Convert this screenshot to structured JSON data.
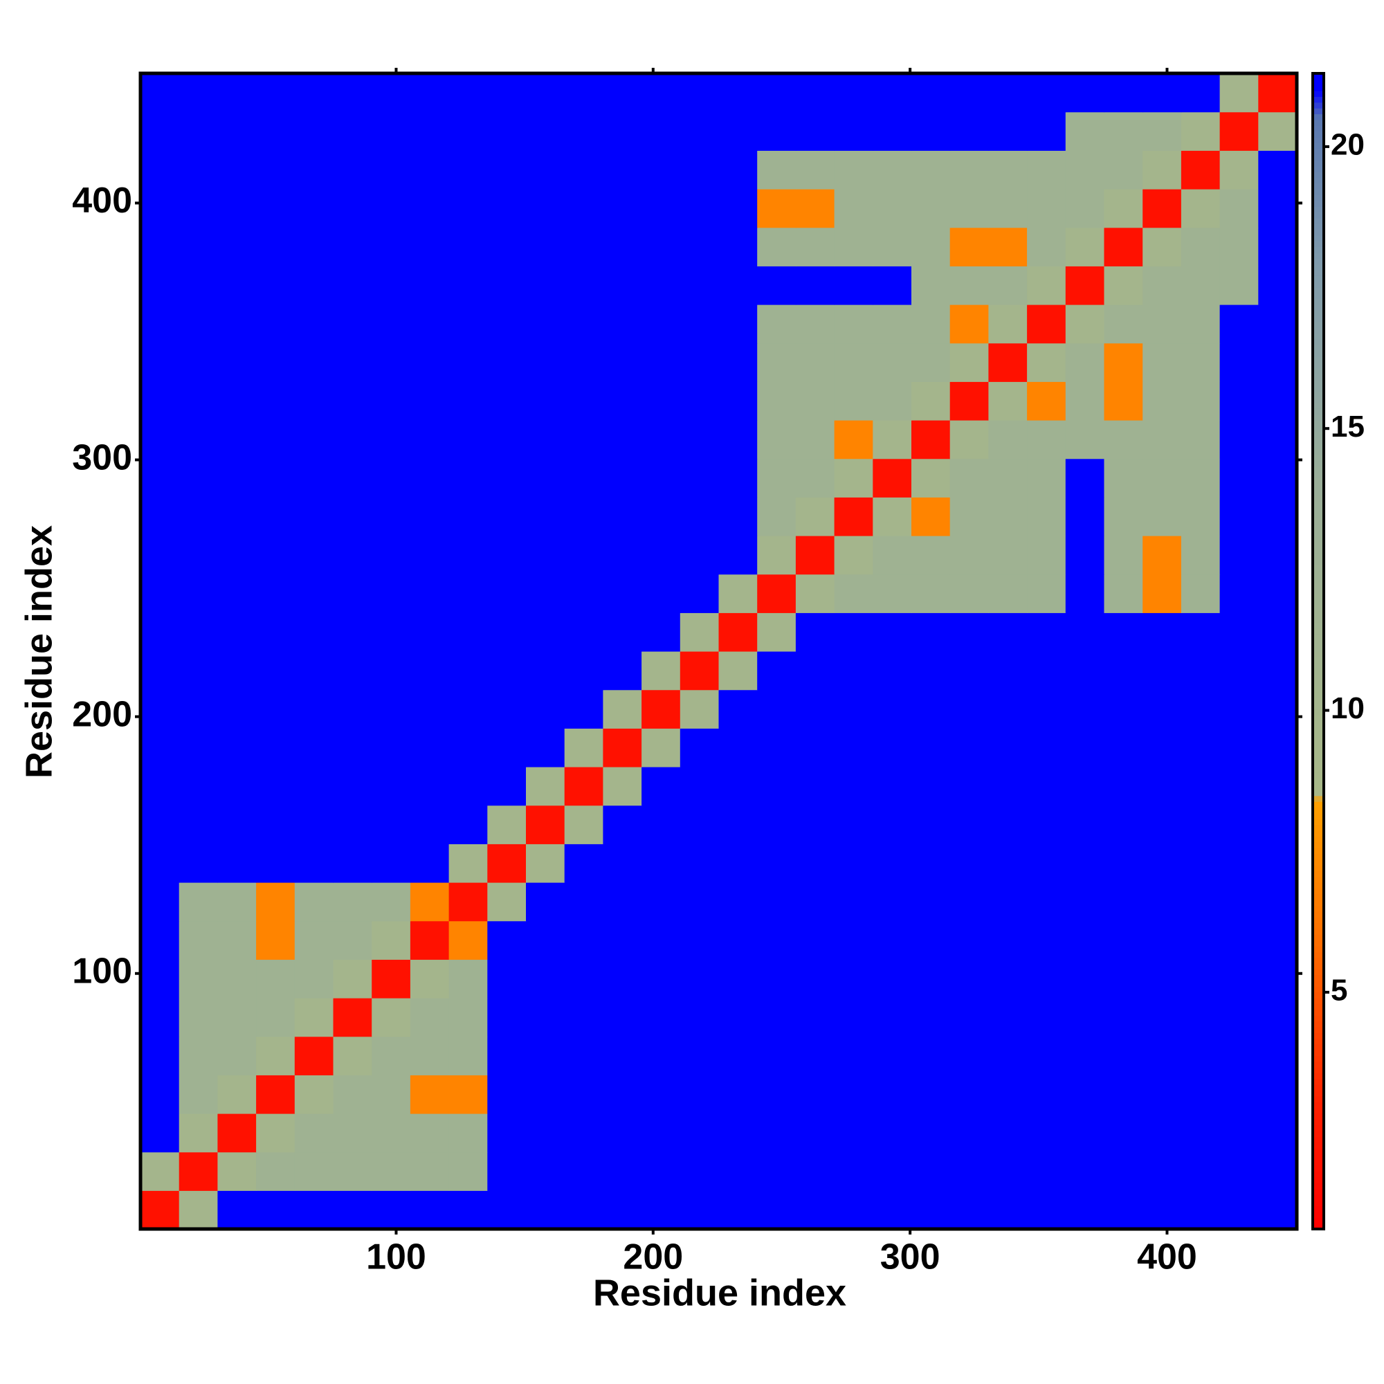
{
  "chart_data": {
    "type": "heatmap",
    "xlabel": "Residue index",
    "ylabel": "Residue index",
    "bins": [
      0.5,
      15.5,
      30.5,
      45.5,
      60.5,
      75.5,
      90.5,
      105.5,
      120.5,
      135.5,
      150.5,
      165.5,
      180.5,
      195.5,
      210.5,
      225.5,
      240.5,
      255.5,
      270.5,
      285.5,
      300.5,
      315.5,
      330.5,
      345.5,
      360.5,
      375.5,
      390.5,
      405.5,
      420.5,
      435.5,
      450.5
    ],
    "xlim": [
      0.5,
      450.5
    ],
    "ylim": [
      0.5,
      450.5
    ],
    "xticks": [
      100,
      200,
      300,
      400
    ],
    "yticks": [
      100,
      200,
      300,
      400
    ],
    "zlim": [
      0.8,
      21.3
    ],
    "zticks": [
      5,
      10,
      15,
      20
    ],
    "colorscale": [
      [
        0.8,
        "#ff0000"
      ],
      [
        3,
        "#ff2000"
      ],
      [
        6,
        "#ff7000"
      ],
      [
        8.4,
        "#ffa000"
      ],
      [
        8.5,
        "#a8b888"
      ],
      [
        14,
        "#9aae98"
      ],
      [
        18,
        "#7f9aac"
      ],
      [
        20.5,
        "#5a78b0"
      ],
      [
        21,
        "#0000ff"
      ],
      [
        21.3,
        "#0000ff"
      ]
    ],
    "z": [
      [
        2,
        10,
        21,
        21,
        21,
        21,
        21,
        21,
        21,
        21,
        21,
        21,
        21,
        21,
        21,
        21,
        21,
        21,
        21,
        21,
        21,
        21,
        21,
        21,
        21,
        21,
        21,
        21,
        21,
        21
      ],
      [
        10,
        2,
        10,
        12,
        12,
        12,
        12,
        12,
        12,
        21,
        21,
        21,
        21,
        21,
        21,
        21,
        21,
        21,
        21,
        21,
        21,
        21,
        21,
        21,
        21,
        21,
        21,
        21,
        21,
        21
      ],
      [
        21,
        10,
        2,
        10,
        12,
        12,
        12,
        12,
        12,
        21,
        21,
        21,
        21,
        21,
        21,
        21,
        21,
        21,
        21,
        21,
        21,
        21,
        21,
        21,
        21,
        21,
        21,
        21,
        21,
        21
      ],
      [
        21,
        12,
        10,
        2,
        10,
        12,
        12,
        7,
        7,
        21,
        21,
        21,
        21,
        21,
        21,
        21,
        21,
        21,
        21,
        21,
        21,
        21,
        21,
        21,
        21,
        21,
        21,
        21,
        21,
        21
      ],
      [
        21,
        12,
        12,
        10,
        2,
        10,
        12,
        12,
        12,
        21,
        21,
        21,
        21,
        21,
        21,
        21,
        21,
        21,
        21,
        21,
        21,
        21,
        21,
        21,
        21,
        21,
        21,
        21,
        21,
        21
      ],
      [
        21,
        12,
        12,
        12,
        10,
        2,
        10,
        12,
        12,
        21,
        21,
        21,
        21,
        21,
        21,
        21,
        21,
        21,
        21,
        21,
        21,
        21,
        21,
        21,
        21,
        21,
        21,
        21,
        21,
        21
      ],
      [
        21,
        12,
        12,
        12,
        12,
        10,
        2,
        10,
        12,
        21,
        21,
        21,
        21,
        21,
        21,
        21,
        21,
        21,
        21,
        21,
        21,
        21,
        21,
        21,
        21,
        21,
        21,
        21,
        21,
        21
      ],
      [
        21,
        12,
        12,
        7,
        12,
        12,
        10,
        2,
        7,
        21,
        21,
        21,
        21,
        21,
        21,
        21,
        21,
        21,
        21,
        21,
        21,
        21,
        21,
        21,
        21,
        21,
        21,
        21,
        21,
        21
      ],
      [
        21,
        12,
        12,
        7,
        12,
        12,
        12,
        7,
        2,
        10,
        21,
        21,
        21,
        21,
        21,
        21,
        21,
        21,
        21,
        21,
        21,
        21,
        21,
        21,
        21,
        21,
        21,
        21,
        21,
        21
      ],
      [
        21,
        21,
        21,
        21,
        21,
        21,
        21,
        21,
        10,
        2,
        10,
        21,
        21,
        21,
        21,
        21,
        21,
        21,
        21,
        21,
        21,
        21,
        21,
        21,
        21,
        21,
        21,
        21,
        21,
        21
      ],
      [
        21,
        21,
        21,
        21,
        21,
        21,
        21,
        21,
        21,
        10,
        2,
        10,
        21,
        21,
        21,
        21,
        21,
        21,
        21,
        21,
        21,
        21,
        21,
        21,
        21,
        21,
        21,
        21,
        21,
        21
      ],
      [
        21,
        21,
        21,
        21,
        21,
        21,
        21,
        21,
        21,
        21,
        10,
        2,
        10,
        21,
        21,
        21,
        21,
        21,
        21,
        21,
        21,
        21,
        21,
        21,
        21,
        21,
        21,
        21,
        21,
        21
      ],
      [
        21,
        21,
        21,
        21,
        21,
        21,
        21,
        21,
        21,
        21,
        21,
        10,
        2,
        10,
        21,
        21,
        21,
        21,
        21,
        21,
        21,
        21,
        21,
        21,
        21,
        21,
        21,
        21,
        21,
        21
      ],
      [
        21,
        21,
        21,
        21,
        21,
        21,
        21,
        21,
        21,
        21,
        21,
        21,
        10,
        2,
        10,
        21,
        21,
        21,
        21,
        21,
        21,
        21,
        21,
        21,
        21,
        21,
        21,
        21,
        21,
        21
      ],
      [
        21,
        21,
        21,
        21,
        21,
        21,
        21,
        21,
        21,
        21,
        21,
        21,
        21,
        10,
        2,
        10,
        21,
        21,
        21,
        21,
        21,
        21,
        21,
        21,
        21,
        21,
        21,
        21,
        21,
        21
      ],
      [
        21,
        21,
        21,
        21,
        21,
        21,
        21,
        21,
        21,
        21,
        21,
        21,
        21,
        21,
        10,
        2,
        10,
        21,
        21,
        21,
        21,
        21,
        21,
        21,
        21,
        21,
        21,
        21,
        21,
        21
      ],
      [
        21,
        21,
        21,
        21,
        21,
        21,
        21,
        21,
        21,
        21,
        21,
        21,
        21,
        21,
        21,
        10,
        2,
        10,
        12,
        12,
        12,
        12,
        12,
        12,
        21,
        12,
        7,
        12,
        21,
        21
      ],
      [
        21,
        21,
        21,
        21,
        21,
        21,
        21,
        21,
        21,
        21,
        21,
        21,
        21,
        21,
        21,
        21,
        10,
        2,
        10,
        12,
        12,
        12,
        12,
        12,
        21,
        12,
        7,
        12,
        21,
        21
      ],
      [
        21,
        21,
        21,
        21,
        21,
        21,
        21,
        21,
        21,
        21,
        21,
        21,
        21,
        21,
        21,
        21,
        12,
        10,
        2,
        10,
        7,
        12,
        12,
        12,
        21,
        12,
        12,
        12,
        21,
        21
      ],
      [
        21,
        21,
        21,
        21,
        21,
        21,
        21,
        21,
        21,
        21,
        21,
        21,
        21,
        21,
        21,
        21,
        12,
        12,
        10,
        2,
        10,
        12,
        12,
        12,
        21,
        12,
        12,
        12,
        21,
        21
      ],
      [
        21,
        21,
        21,
        21,
        21,
        21,
        21,
        21,
        21,
        21,
        21,
        21,
        21,
        21,
        21,
        21,
        12,
        12,
        7,
        10,
        2,
        10,
        12,
        12,
        12,
        12,
        12,
        12,
        21,
        21
      ],
      [
        21,
        21,
        21,
        21,
        21,
        21,
        21,
        21,
        21,
        21,
        21,
        21,
        21,
        21,
        21,
        21,
        12,
        12,
        12,
        12,
        10,
        2,
        10,
        7,
        12,
        7,
        12,
        12,
        21,
        21
      ],
      [
        21,
        21,
        21,
        21,
        21,
        21,
        21,
        21,
        21,
        21,
        21,
        21,
        21,
        21,
        21,
        21,
        12,
        12,
        12,
        12,
        12,
        10,
        2,
        10,
        12,
        7,
        12,
        12,
        21,
        21
      ],
      [
        21,
        21,
        21,
        21,
        21,
        21,
        21,
        21,
        21,
        21,
        21,
        21,
        21,
        21,
        21,
        21,
        12,
        12,
        12,
        12,
        12,
        7,
        10,
        2,
        10,
        12,
        12,
        12,
        21,
        21
      ],
      [
        21,
        21,
        21,
        21,
        21,
        21,
        21,
        21,
        21,
        21,
        21,
        21,
        21,
        21,
        21,
        21,
        21,
        21,
        21,
        21,
        12,
        12,
        12,
        10,
        2,
        10,
        12,
        12,
        12,
        21
      ],
      [
        21,
        21,
        21,
        21,
        21,
        21,
        21,
        21,
        21,
        21,
        21,
        21,
        21,
        21,
        21,
        21,
        12,
        12,
        12,
        12,
        12,
        7,
        7,
        12,
        10,
        2,
        10,
        12,
        12,
        21
      ],
      [
        21,
        21,
        21,
        21,
        21,
        21,
        21,
        21,
        21,
        21,
        21,
        21,
        21,
        21,
        21,
        21,
        7,
        7,
        12,
        12,
        12,
        12,
        12,
        12,
        12,
        10,
        2,
        10,
        12,
        21
      ],
      [
        21,
        21,
        21,
        21,
        21,
        21,
        21,
        21,
        21,
        21,
        21,
        21,
        21,
        21,
        21,
        21,
        12,
        12,
        12,
        12,
        12,
        12,
        12,
        12,
        12,
        12,
        10,
        2,
        10,
        21
      ],
      [
        21,
        21,
        21,
        21,
        21,
        21,
        21,
        21,
        21,
        21,
        21,
        21,
        21,
        21,
        21,
        21,
        21,
        21,
        21,
        21,
        21,
        21,
        21,
        21,
        12,
        12,
        12,
        10,
        2,
        10
      ],
      [
        21,
        21,
        21,
        21,
        21,
        21,
        21,
        21,
        21,
        21,
        21,
        21,
        21,
        21,
        21,
        21,
        21,
        21,
        21,
        21,
        21,
        21,
        21,
        21,
        21,
        21,
        21,
        21,
        10,
        2
      ]
    ]
  }
}
